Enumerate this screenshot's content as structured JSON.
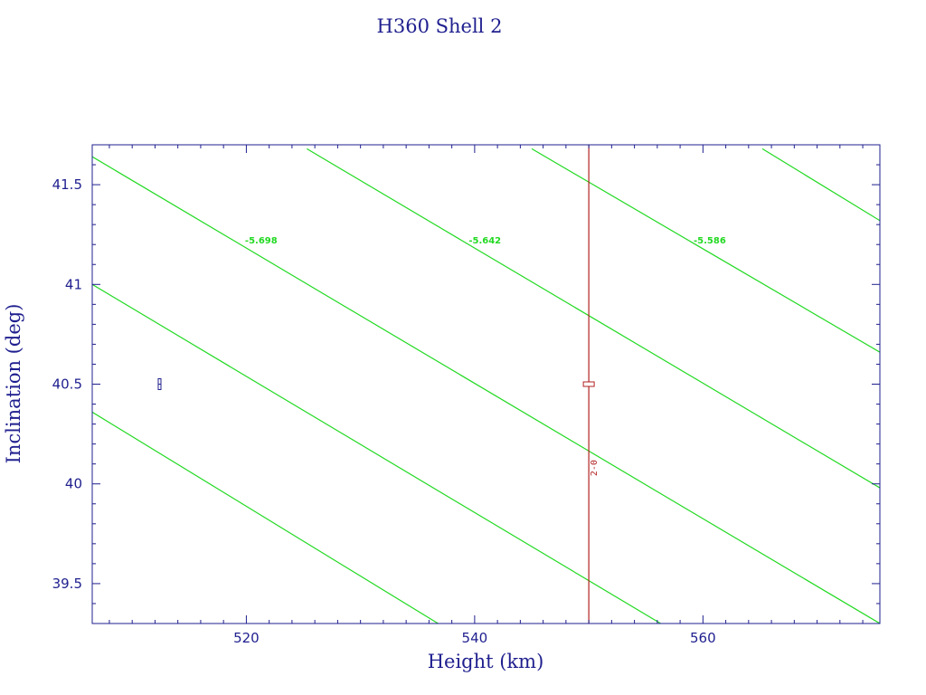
{
  "chart_data": {
    "type": "line",
    "title": "H360 Shell 2",
    "xlabel": "Height (km)",
    "ylabel": "Inclination (deg)",
    "xlim": [
      506.5,
      575.5
    ],
    "ylim": [
      39.3,
      41.7
    ],
    "x_major_ticks": [
      520,
      540,
      560
    ],
    "x_tick_labels": [
      "520",
      "540",
      "560"
    ],
    "x_minor_step": 2,
    "y_major_ticks": [
      39.5,
      40,
      40.5,
      41,
      41.5
    ],
    "y_tick_labels": [
      "39.5",
      "40",
      "40.5",
      "41",
      "41.5"
    ],
    "y_minor_step": 0.1,
    "grid": false,
    "colors": {
      "frame": "#1f1f8f",
      "contour": "#22d922",
      "marker_red": "#b22222",
      "marker_blue": "#1f1f8f"
    },
    "contours": [
      {
        "points": [
          [
            506.5,
            40.36
          ],
          [
            536.8,
            39.3
          ]
        ],
        "label": ""
      },
      {
        "points": [
          [
            506.5,
            41.0
          ],
          [
            556.3,
            39.3
          ]
        ],
        "label": ""
      },
      {
        "points": [
          [
            506.5,
            41.64
          ],
          [
            575.5,
            39.3
          ]
        ],
        "label": "-5.698",
        "label_at": [
          521.3,
          41.22
        ]
      },
      {
        "points": [
          [
            525.3,
            41.68
          ],
          [
            575.5,
            39.98
          ]
        ],
        "label": "-5.642",
        "label_at": [
          540.9,
          41.22
        ]
      },
      {
        "points": [
          [
            545.0,
            41.68
          ],
          [
            575.5,
            40.66
          ]
        ],
        "label": "-5.586",
        "label_at": [
          560.6,
          41.22
        ]
      },
      {
        "points": [
          [
            565.2,
            41.68
          ],
          [
            575.5,
            41.32
          ]
        ],
        "label": ""
      }
    ],
    "vertical_line": {
      "x": 550
    },
    "markers": [
      {
        "x": 550,
        "y": 40.5,
        "color_key": "marker_red",
        "label": ""
      },
      {
        "x": 512.4,
        "y": 40.5,
        "color_key": "marker_blue",
        "label": ""
      }
    ],
    "point_label": {
      "text": "2-0",
      "x": 550.7,
      "y": 40.08,
      "color_key": "marker_red"
    }
  }
}
